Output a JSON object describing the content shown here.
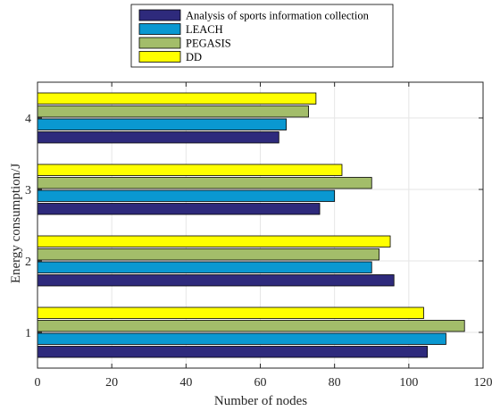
{
  "chart_data": {
    "type": "bar",
    "orientation": "horizontal",
    "categories": [
      "1",
      "2",
      "3",
      "4"
    ],
    "series": [
      {
        "name": "Analysis of sports information collection",
        "color": "#2e2a7c",
        "values": [
          105,
          96,
          76,
          65
        ]
      },
      {
        "name": "LEACH",
        "color": "#0a98d1",
        "values": [
          110,
          90,
          80,
          67
        ]
      },
      {
        "name": "PEGASIS",
        "color": "#a3bd6a",
        "values": [
          115,
          92,
          90,
          73
        ]
      },
      {
        "name": "DD",
        "color": "#ffff00",
        "values": [
          104,
          95,
          82,
          75
        ]
      }
    ],
    "xlabel": "Number of nodes",
    "ylabel": "Energy consumption/J",
    "xlim": [
      0,
      120
    ],
    "xticks": [
      0,
      20,
      40,
      60,
      80,
      100,
      120
    ],
    "grid": true,
    "legend_position": "top-center-outside"
  }
}
